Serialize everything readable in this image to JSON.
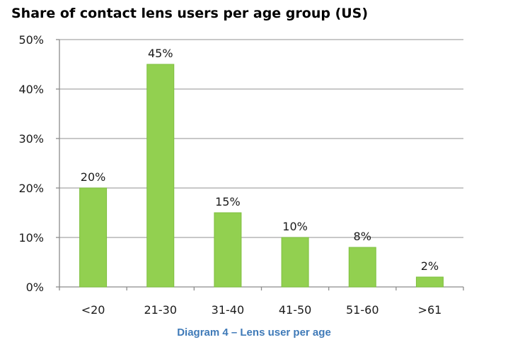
{
  "chart_data": {
    "type": "bar",
    "title": "Share of contact lens users per age group (US)",
    "caption": "Diagram 4 – Lens user per age",
    "categories": [
      "<20",
      "21-30",
      "31-40",
      "41-50",
      "51-60",
      ">61"
    ],
    "values": [
      20,
      45,
      15,
      10,
      8,
      2
    ],
    "data_labels": [
      "20%",
      "45%",
      "15%",
      "10%",
      "8%",
      "2%"
    ],
    "y_ticks": [
      0,
      10,
      20,
      30,
      40,
      50
    ],
    "y_tick_labels": [
      "0%",
      "10%",
      "20%",
      "30%",
      "40%",
      "50%"
    ],
    "ylim": [
      0,
      50
    ],
    "xlabel": "",
    "ylabel": "",
    "grid": true,
    "legend": "none",
    "colors": {
      "bar": "#92d050",
      "bar_stroke": "#7fbf3f",
      "grid": "#a6a6a6",
      "axis": "#8c8c8c",
      "caption": "#3f7ab8"
    }
  }
}
